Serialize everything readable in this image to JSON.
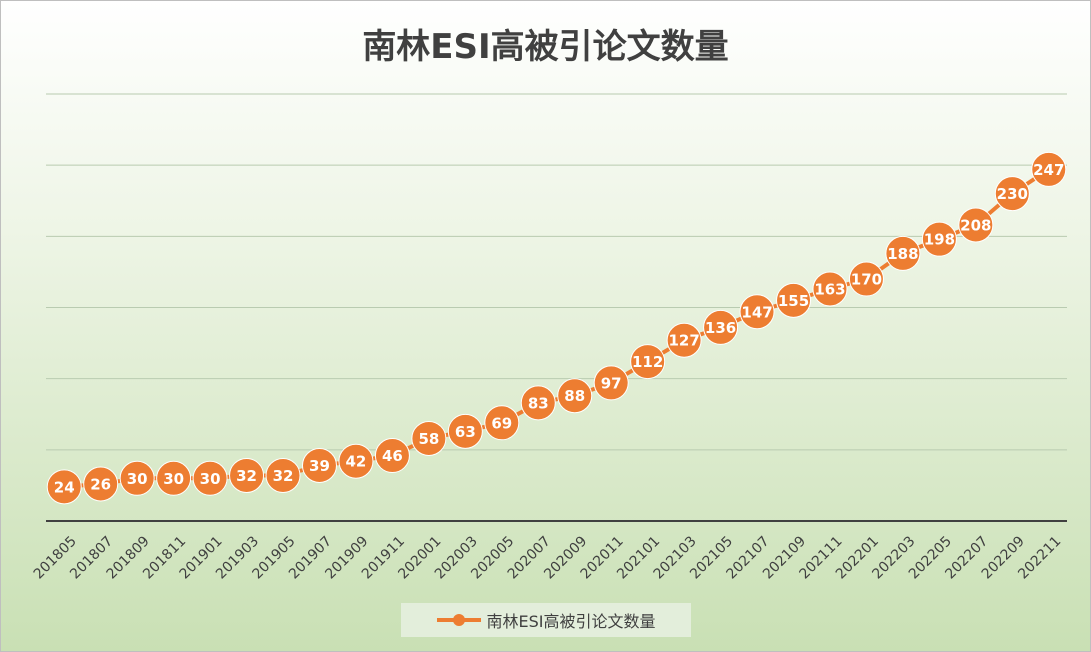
{
  "chart_data": {
    "type": "line",
    "title": "南林ESI高被引论文数量",
    "xlabel": "",
    "ylabel": "",
    "x": [
      "201805",
      "201807",
      "201809",
      "201811",
      "201901",
      "201903",
      "201905",
      "201907",
      "201909",
      "201911",
      "202001",
      "202003",
      "202005",
      "202007",
      "202009",
      "202011",
      "202101",
      "202103",
      "202105",
      "202107",
      "202109",
      "202111",
      "202201",
      "202203",
      "202205",
      "202207",
      "202209",
      "202211"
    ],
    "series": [
      {
        "name": "南林ESI高被引论文数量",
        "values": [
          24,
          26,
          30,
          30,
          30,
          32,
          32,
          39,
          42,
          46,
          58,
          63,
          69,
          83,
          88,
          97,
          112,
          127,
          136,
          147,
          155,
          163,
          170,
          188,
          198,
          208,
          230,
          247
        ]
      }
    ],
    "ylim": [
      0,
      300
    ],
    "grid": true,
    "legend": "bottom",
    "line_color": "#ed7d31"
  }
}
